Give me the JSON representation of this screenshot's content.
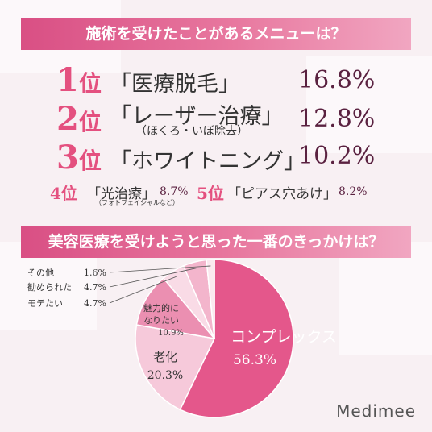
{
  "q1": {
    "title": "施術を受けたことがあるメニューは？",
    "top": [
      {
        "num": "1",
        "unit": "位",
        "menu": "「医療脱毛」",
        "sub": "",
        "value": "16.8%"
      },
      {
        "num": "2",
        "unit": "位",
        "menu": "「レーザー治療」",
        "sub": "（ほくろ・いぼ除去）",
        "value": "12.8%"
      },
      {
        "num": "3",
        "unit": "位",
        "menu": "「ホワイトニング」",
        "sub": "",
        "value": "10.2%"
      }
    ],
    "fourth": {
      "rank": "4位",
      "menu": "「光治療」",
      "sub": "（フォトフェイシャルなど）",
      "value": "8.7%"
    },
    "fifth": {
      "rank": "5位",
      "menu": "「ピアス穴あけ」",
      "value": "8.2%"
    }
  },
  "q2": {
    "title": "美容医療を受けようと思った一番のきっかけは？"
  },
  "chart_data": {
    "type": "pie",
    "slices": [
      {
        "label": "コンプレックス",
        "value": 56.3,
        "display": "56.3%",
        "color": "#e4578b"
      },
      {
        "label": "老化",
        "value": 20.3,
        "display": "20.3%",
        "color": "#f6c9da"
      },
      {
        "label": "魅力的になりたい",
        "value": 10.9,
        "display": "10.9%",
        "color": "#eb8fb1"
      },
      {
        "label": "モテたい",
        "value": 4.7,
        "display": "4.7%",
        "color": "#f9dbe6"
      },
      {
        "label": "勧められた",
        "value": 4.7,
        "display": "4.7%",
        "color": "#f3b5cc"
      },
      {
        "label": "その他",
        "value": 1.6,
        "display": "1.6%",
        "color": "#fbe8ef"
      }
    ]
  },
  "brand": {
    "logo": "Medimee"
  }
}
